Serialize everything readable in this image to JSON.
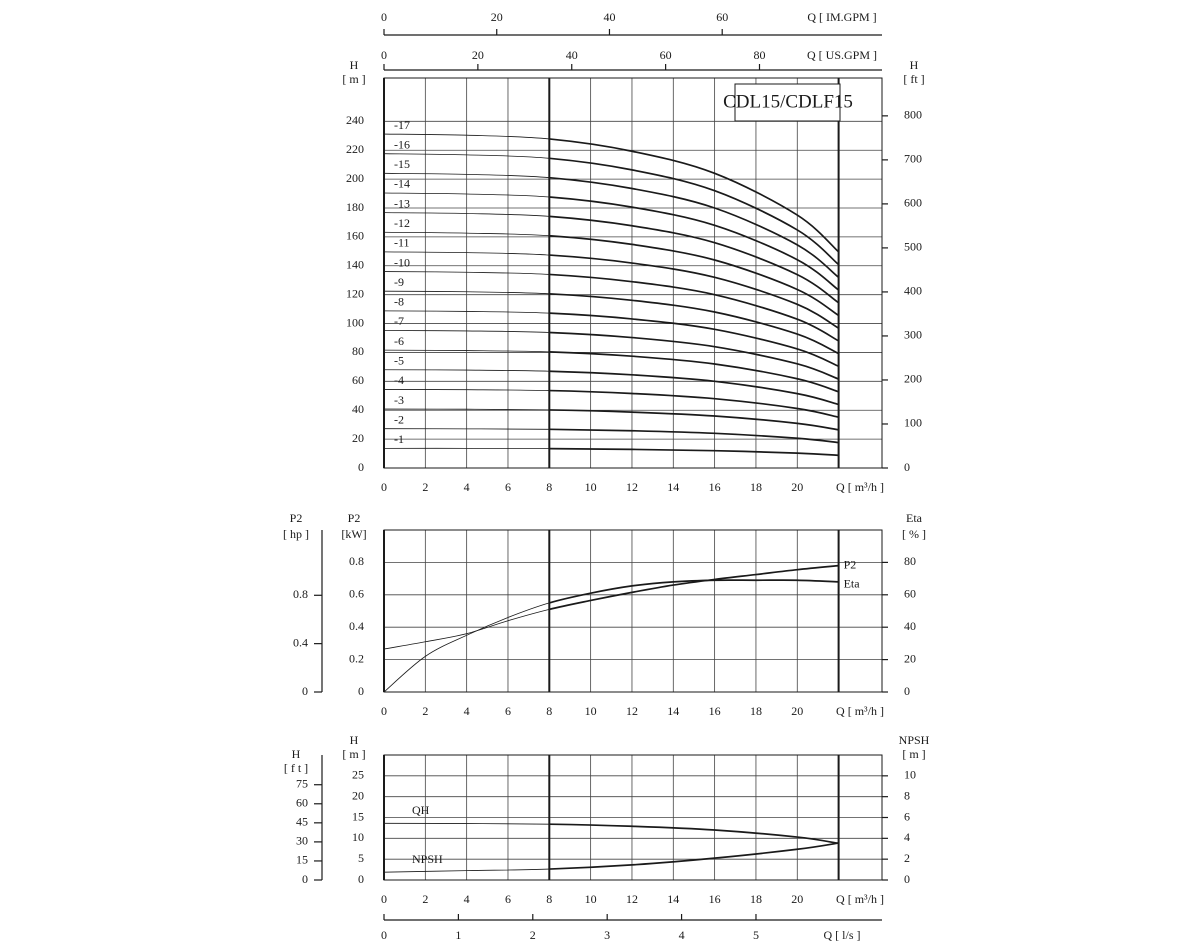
{
  "chart_data": [
    {
      "type": "line",
      "title": "CDL15/CDLF15",
      "x_label": "Q [ m³/h ]",
      "y_label": "H",
      "y_unit": "[ m ]",
      "y2_label": "H",
      "y2_unit": "[ ft ]",
      "xlim": [
        0,
        24.1
      ],
      "xticks": [
        0,
        2,
        4,
        6,
        8,
        10,
        12,
        14,
        16,
        18,
        20
      ],
      "ylim": [
        0,
        270
      ],
      "yticks": [
        0,
        20,
        40,
        60,
        80,
        100,
        120,
        140,
        160,
        180,
        200,
        220,
        240
      ],
      "y2lim": [
        0,
        886
      ],
      "y2ticks": [
        0,
        100,
        200,
        300,
        400,
        500,
        600,
        700,
        800
      ],
      "top_axes": [
        {
          "label": "Q [ IM.GPM ]",
          "lim": [
            0,
            88.35
          ],
          "ticks": [
            0,
            20,
            40,
            60
          ]
        },
        {
          "label": "Q [ US.GPM ]",
          "lim": [
            0,
            106.1
          ],
          "ticks": [
            0,
            20,
            40,
            60,
            80
          ]
        }
      ],
      "operating_range": [
        8,
        22
      ],
      "color": "#1a1a1a",
      "grid": true,
      "x": [
        0,
        4,
        8,
        12,
        16,
        20,
        22
      ],
      "series": [
        {
          "name": "-1",
          "values": [
            13.6,
            13.6,
            13.4,
            12.9,
            12,
            10.3,
            8.8
          ]
        },
        {
          "name": "-2",
          "values": [
            27.2,
            27.1,
            26.8,
            25.8,
            24,
            20.6,
            17.6
          ]
        },
        {
          "name": "-3",
          "values": [
            40.8,
            40.7,
            40.2,
            38.7,
            36,
            30.9,
            26.4
          ]
        },
        {
          "name": "-4",
          "values": [
            54.4,
            54.2,
            53.6,
            51.6,
            48,
            41.2,
            35.2
          ]
        },
        {
          "name": "-5",
          "values": [
            68,
            67.8,
            67,
            64.5,
            60,
            51.5,
            44
          ]
        },
        {
          "name": "-6",
          "values": [
            81.6,
            81.3,
            80.4,
            77.4,
            72,
            61.8,
            52.8
          ]
        },
        {
          "name": "-7",
          "values": [
            95.2,
            94.9,
            93.8,
            90.3,
            84,
            72.1,
            61.6
          ]
        },
        {
          "name": "-8",
          "values": [
            108.8,
            108.4,
            107.2,
            103.2,
            96,
            82.4,
            70.4
          ]
        },
        {
          "name": "-9",
          "values": [
            122.4,
            122,
            120.6,
            116.1,
            108,
            92.7,
            79.2
          ]
        },
        {
          "name": "-10",
          "values": [
            136,
            135.5,
            134,
            129,
            120,
            103,
            88
          ]
        },
        {
          "name": "-11",
          "values": [
            149.6,
            149.1,
            147.4,
            141.9,
            132,
            113.3,
            96.8
          ]
        },
        {
          "name": "-12",
          "values": [
            163.2,
            162.6,
            160.8,
            154.8,
            144,
            123.6,
            105.6
          ]
        },
        {
          "name": "-13",
          "values": [
            176.8,
            176.2,
            174.2,
            167.7,
            156,
            133.9,
            114.4
          ]
        },
        {
          "name": "-14",
          "values": [
            190.4,
            189.7,
            187.6,
            180.6,
            168,
            144.2,
            123.2
          ]
        },
        {
          "name": "-15",
          "values": [
            204,
            203.3,
            201,
            193.5,
            180,
            154.5,
            132
          ]
        },
        {
          "name": "-16",
          "values": [
            217.6,
            216.8,
            214.4,
            206.4,
            192,
            164.8,
            140.8
          ]
        },
        {
          "name": "-17",
          "values": [
            231.2,
            230.4,
            227.8,
            219.3,
            204,
            175.1,
            149.6
          ]
        }
      ]
    },
    {
      "type": "line",
      "x_label": "Q [ m³/h ]",
      "y_label": "P2",
      "y_unit": "[kW]",
      "y2_label": "Eta",
      "y2_unit": "[ % ]",
      "xlim": [
        0,
        24.1
      ],
      "xticks": [
        0,
        2,
        4,
        6,
        8,
        10,
        12,
        14,
        16,
        18,
        20
      ],
      "ylim": [
        0,
        1.0
      ],
      "yticks": [
        0,
        0.2,
        0.4,
        0.6,
        0.8
      ],
      "y2lim": [
        0,
        100
      ],
      "y2ticks": [
        0,
        20,
        40,
        60,
        80
      ],
      "outer_axis": {
        "label": "P2",
        "unit": "[ hp ]",
        "lim": [
          0,
          1.34
        ],
        "ticks": [
          0,
          0.4,
          0.8
        ]
      },
      "operating_range": [
        8,
        22
      ],
      "color": "#1a1a1a",
      "grid": true,
      "x": [
        0,
        2,
        4,
        6,
        8,
        10,
        12,
        14,
        16,
        18,
        20,
        22
      ],
      "series": [
        {
          "name": "P2",
          "values": [
            0.265,
            0.31,
            0.36,
            0.44,
            0.51,
            0.565,
            0.615,
            0.66,
            0.695,
            0.725,
            0.755,
            0.78
          ]
        },
        {
          "name": "Eta",
          "axis": "y2",
          "values": [
            0,
            22,
            35,
            46,
            55,
            61,
            65.5,
            68,
            69,
            69,
            69,
            68
          ]
        }
      ]
    },
    {
      "type": "line",
      "x_label": "Q [ m³/h ]",
      "y_label": "H",
      "y_unit": "[ m ]",
      "y2_label": "NPSH",
      "y2_unit": "[ m ]",
      "xlim": [
        0,
        24.1
      ],
      "xticks": [
        0,
        2,
        4,
        6,
        8,
        10,
        12,
        14,
        16,
        18,
        20
      ],
      "ylim": [
        0,
        30
      ],
      "yticks": [
        0,
        5,
        10,
        15,
        20,
        25
      ],
      "y2lim": [
        0,
        12
      ],
      "y2ticks": [
        0,
        2,
        4,
        6,
        8,
        10
      ],
      "outer_axis": {
        "label": "H",
        "unit": "[ f t ]",
        "lim": [
          0,
          98.4
        ],
        "ticks": [
          0,
          15,
          30,
          45,
          60,
          75
        ]
      },
      "bottom_axes": [
        {
          "label": "Q [ l/s ]",
          "lim": [
            0,
            6.694
          ],
          "ticks": [
            0,
            1,
            2,
            3,
            4,
            5
          ]
        }
      ],
      "operating_range": [
        8,
        22
      ],
      "color": "#1a1a1a",
      "grid": true,
      "x": [
        0,
        4,
        8,
        12,
        16,
        20,
        22
      ],
      "series": [
        {
          "name": "QH",
          "values": [
            13.6,
            13.55,
            13.4,
            12.9,
            12,
            10.3,
            8.8
          ]
        },
        {
          "name": "NPSH",
          "axis": "y2",
          "values": [
            0.75,
            0.9,
            1.05,
            1.45,
            2.1,
            2.95,
            3.55
          ]
        }
      ]
    }
  ]
}
